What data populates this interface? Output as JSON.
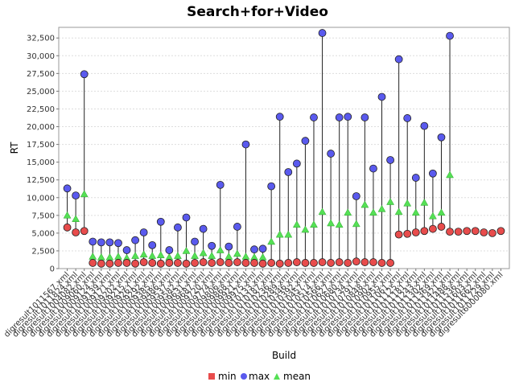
{
  "chart_data": {
    "type": "scatter",
    "title": "Search+for+Video",
    "xlabel": "Build",
    "ylabel": "RT",
    "ylim": [
      0,
      34000
    ],
    "y_ticks": [
      0,
      2500,
      5000,
      7500,
      10000,
      12500,
      15000,
      17500,
      20000,
      22500,
      25000,
      27500,
      30000,
      32500
    ],
    "y_tick_labels": [
      "0",
      "2,500",
      "5,000",
      "7,500",
      "10,000",
      "12,500",
      "15,000",
      "17,500",
      "20,000",
      "22,500",
      "25,000",
      "27,500",
      "30,000",
      "32,500"
    ],
    "grid": true,
    "legend_position": "bottom",
    "colors": {
      "min": "#e84c4c",
      "max": "#5a5aee",
      "mean": "#55e055",
      "stem": "#222222",
      "grid": "#dddddd",
      "frame": "#999999"
    },
    "categories": [
      "digresult1011567.xml",
      "digresult1011824.xml",
      "digresult1004082.xml",
      "digresult1009060.xml",
      "digresult1009124.xml",
      "digresult1009139.xml",
      "digresult1009171.xml",
      "digresult1009202.xml",
      "digresult1009215.xml",
      "digresult1009261.xml",
      "digresult1009292.xml",
      "digresult1009385.xml",
      "digresult1009486.xml",
      "digresult1009537.xml",
      "digresult1009582.xml",
      "digresult1009631.xml",
      "digresult1009687.xml",
      "digresult1009720.xml",
      "digresult1009774.xml",
      "digresult1009806.xml",
      "digresult1009868.xml",
      "digresult1009921.xml",
      "digresult1009975.xml",
      "digresult1010133.xml",
      "digresult1010187.xml",
      "digresult1010236.xml",
      "digresult1010289.xml",
      "digresult1010346.xml",
      "digresult1010392.xml",
      "digresult1010457.xml",
      "digresult1010514.xml",
      "digresult1010566.xml",
      "digresult1010627.xml",
      "digresult1010680.xml",
      "digresult1010734.xml",
      "digresult1010791.xml",
      "digresult1010848.xml",
      "digresult1010902.xml",
      "digresult1010955.xml",
      "digresult1011061.xml",
      "digresult1011125.xml",
      "digresult1011181.xml",
      "digresult1011243.xml",
      "digresult1011302.xml",
      "digresult1011369.xml",
      "digresult1011421.xml",
      "digresult1011488.xml",
      "digresult1011536.xml",
      "digresult1011603.xml",
      "digresult1011662.xml",
      "digresult1011729.xml",
      "digresult6000080.xml"
    ],
    "series": [
      {
        "name": "min",
        "values": [
          5800,
          5100,
          5300,
          800,
          700,
          700,
          800,
          800,
          700,
          900,
          800,
          700,
          800,
          800,
          700,
          800,
          900,
          800,
          900,
          800,
          900,
          800,
          800,
          700,
          800,
          700,
          800,
          900,
          800,
          800,
          900,
          800,
          900,
          800,
          1000,
          900,
          900,
          800,
          800,
          4800,
          4900,
          5100,
          5300,
          5600,
          5900,
          5200,
          5200,
          5300,
          5300,
          5100,
          5000,
          5300
        ]
      },
      {
        "name": "max",
        "values": [
          11300,
          10300,
          27400,
          3800,
          3700,
          3700,
          3600,
          2600,
          4000,
          5100,
          3300,
          6600,
          2600,
          5800,
          7200,
          3800,
          5600,
          3200,
          11800,
          3100,
          5900,
          17500,
          2700,
          2800,
          11600,
          21400,
          13600,
          14800,
          18000,
          21300,
          33200,
          16200,
          21300,
          21400,
          10200,
          21300,
          14100,
          24200,
          15300,
          29500,
          21200,
          12800,
          20100,
          13400,
          18500,
          32800,
          0,
          0,
          0,
          0,
          0,
          0
        ]
      },
      {
        "name": "mean",
        "values": [
          7500,
          7000,
          10500,
          1700,
          1600,
          1600,
          1700,
          1500,
          1800,
          2000,
          1800,
          1900,
          1600,
          1800,
          2500,
          1800,
          2200,
          1800,
          2600,
          1700,
          2100,
          1700,
          1600,
          1600,
          3800,
          4800,
          4800,
          6200,
          5500,
          6200,
          8000,
          6400,
          6200,
          7900,
          6300,
          9000,
          7900,
          8400,
          9400,
          8000,
          9200,
          7900,
          9300,
          7400,
          7900,
          13200,
          0,
          0,
          0,
          0,
          0,
          0
        ]
      }
    ]
  },
  "legend": {
    "items": [
      {
        "label": "min"
      },
      {
        "label": "max"
      },
      {
        "label": "mean"
      }
    ]
  }
}
